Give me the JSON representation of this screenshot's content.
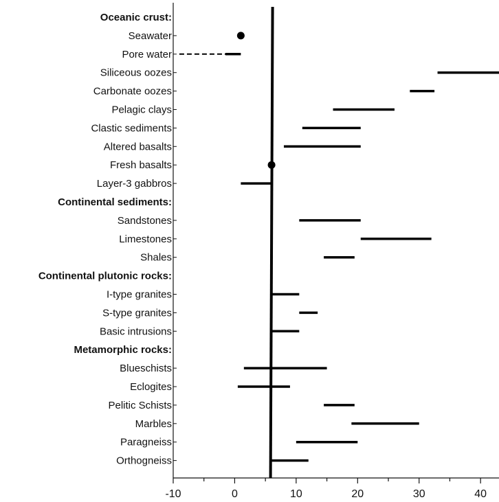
{
  "chart_data": {
    "type": "range",
    "title": "",
    "xlabel": "",
    "ylabel": "",
    "xlim": [
      -10,
      43
    ],
    "xticks": [
      -10,
      0,
      10,
      20,
      30,
      40
    ],
    "reference_line": 6,
    "grid": false,
    "legend": "none",
    "rows": [
      {
        "label": "Oceanic crust:",
        "header": true
      },
      {
        "label": "Seawater",
        "point": 1
      },
      {
        "label": "Pore water",
        "range": [
          -1.5,
          1
        ],
        "dashed_from": -9
      },
      {
        "label": "Siliceous oozes",
        "range": [
          33,
          43
        ]
      },
      {
        "label": "Carbonate oozes",
        "range": [
          28.5,
          32.5
        ]
      },
      {
        "label": "Pelagic clays",
        "range": [
          16,
          26
        ]
      },
      {
        "label": "Clastic sediments",
        "range": [
          11,
          20.5
        ]
      },
      {
        "label": "Altered basalts",
        "range": [
          8,
          20.5
        ]
      },
      {
        "label": "Fresh basalts",
        "point": 6
      },
      {
        "label": "Layer-3 gabbros",
        "range": [
          1,
          6
        ]
      },
      {
        "label": "Continental sediments:",
        "header": true
      },
      {
        "label": "Sandstones",
        "range": [
          10.5,
          20.5
        ]
      },
      {
        "label": "Limestones",
        "range": [
          20.5,
          32
        ]
      },
      {
        "label": "Shales",
        "range": [
          14.5,
          19.5
        ]
      },
      {
        "label": "Continental plutonic rocks:",
        "header": true
      },
      {
        "label": "I-type granites",
        "range": [
          6,
          10.5
        ]
      },
      {
        "label": "S-type granites",
        "range": [
          10.5,
          13.5
        ]
      },
      {
        "label": "Basic intrusions",
        "range": [
          6,
          10.5
        ]
      },
      {
        "label": "Metamorphic rocks:",
        "header": true
      },
      {
        "label": "Blueschists",
        "range": [
          1.5,
          15
        ]
      },
      {
        "label": "Eclogites",
        "range": [
          0.5,
          9
        ]
      },
      {
        "label": "Pelitic Schists",
        "range": [
          14.5,
          19.5
        ]
      },
      {
        "label": "Marbles",
        "range": [
          19,
          30
        ]
      },
      {
        "label": "Paragneiss",
        "range": [
          10,
          20
        ]
      },
      {
        "label": "Orthogneiss",
        "range": [
          6,
          12
        ]
      }
    ]
  }
}
